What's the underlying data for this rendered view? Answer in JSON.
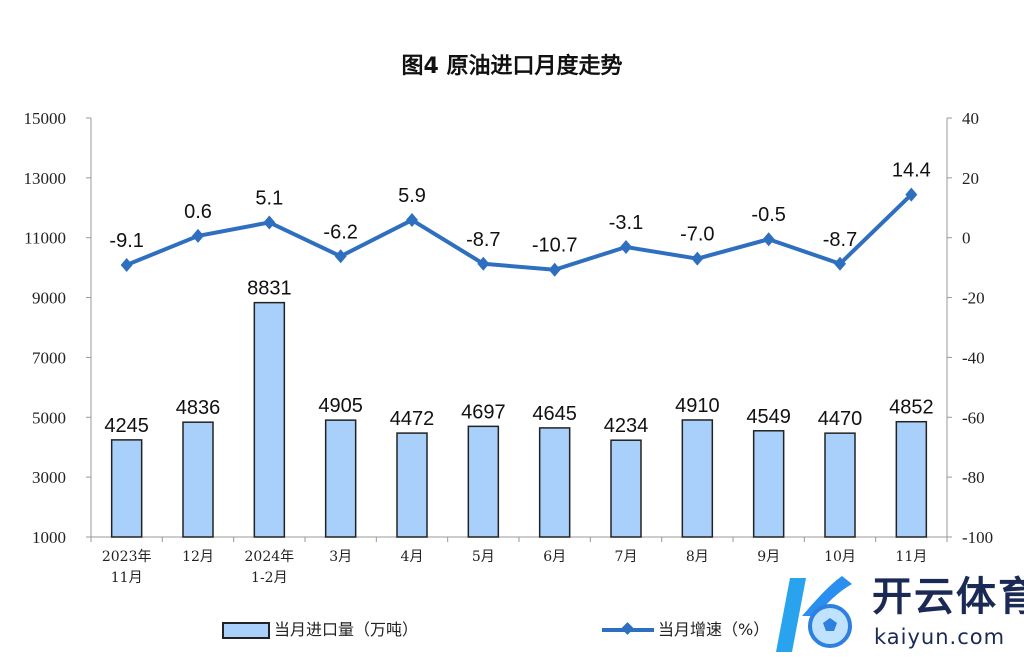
{
  "chart_data": {
    "type": "bar+line",
    "title": "图4  原油进口月度走势",
    "categories": [
      [
        "2023年",
        "11月"
      ],
      [
        "12月"
      ],
      [
        "2024年",
        "1-2月"
      ],
      [
        "3月"
      ],
      [
        "4月"
      ],
      [
        "5月"
      ],
      [
        "6月"
      ],
      [
        "7月"
      ],
      [
        "8月"
      ],
      [
        "9月"
      ],
      [
        "10月"
      ],
      [
        "11月"
      ]
    ],
    "series": [
      {
        "name": "当月进口量（万吨）",
        "type": "bar",
        "axis": "left",
        "values": [
          4245,
          4836,
          8831,
          4905,
          4472,
          4697,
          4645,
          4234,
          4910,
          4549,
          4470,
          4852
        ]
      },
      {
        "name": "当月增速（%）",
        "type": "line",
        "axis": "right",
        "values": [
          -9.1,
          0.6,
          5.1,
          -6.2,
          5.9,
          -8.7,
          -10.7,
          -3.1,
          -7.0,
          -0.5,
          -8.7,
          14.4
        ]
      }
    ],
    "value_labels": {
      "bars": [
        "4245",
        "4836",
        "8831",
        "4905",
        "4472",
        "4697",
        "4645",
        "4234",
        "4910",
        "4549",
        "4470",
        "4852"
      ],
      "line": [
        "-9.1",
        "0.6",
        "5.1",
        "-6.2",
        "5.9",
        "-8.7",
        "-10.7",
        "-3.1",
        "-7.0",
        "-0.5",
        "-8.7",
        "14.4"
      ]
    },
    "y_left": {
      "range": [
        1000,
        15000
      ],
      "ticks": [
        "1000",
        "3000",
        "5000",
        "7000",
        "9000",
        "11000",
        "13000",
        "15000"
      ]
    },
    "y_right": {
      "range": [
        -100,
        40
      ],
      "ticks": [
        "-100",
        "-80",
        "-60",
        "-40",
        "-20",
        "0",
        "20",
        "40"
      ]
    },
    "grid": false,
    "legend_position": "bottom",
    "colors": {
      "bar": "#a8d0fa",
      "bar_border": "#222222",
      "line": "#2e6fbf"
    }
  },
  "watermark": {
    "cn": "开云体育",
    "en": "kaiyun.com"
  }
}
